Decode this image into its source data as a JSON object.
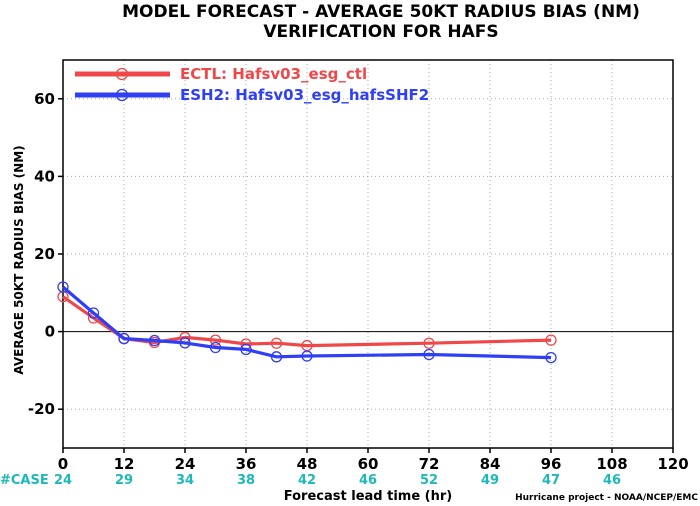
{
  "chart_data": {
    "type": "line",
    "title": "MODEL FORECAST - AVERAGE 50KT RADIUS BIAS (NM)",
    "subtitle": "VERIFICATION FOR HAFS",
    "xlabel": "Forecast lead time (hr)",
    "ylabel": "AVERAGE 50KT RADIUS BIAS (NM)",
    "xlim": [
      0,
      120
    ],
    "ylim": [
      -30,
      70
    ],
    "xticks": [
      0,
      12,
      24,
      36,
      48,
      60,
      72,
      84,
      96,
      108,
      120
    ],
    "yticks": [
      -20,
      0,
      20,
      40,
      60
    ],
    "grid": true,
    "legend_position": "top-left",
    "series": [
      {
        "name": "ECTL: Hafsv03_esg_ctl",
        "color": "#f04848",
        "x": [
          0,
          6,
          12,
          18,
          24,
          30,
          36,
          42,
          48,
          72,
          96
        ],
        "y": [
          9,
          3.5,
          -1.8,
          -2.8,
          -1.5,
          -2.2,
          -3.2,
          -3,
          -3.6,
          -3,
          -2.2
        ]
      },
      {
        "name": "ESH2: Hafsv03_esg_hafsSHF2",
        "color": "#2f3ff5",
        "x": [
          0,
          6,
          12,
          18,
          24,
          30,
          36,
          42,
          48,
          72,
          96
        ],
        "y": [
          11.5,
          4.8,
          -1.8,
          -2.3,
          -2.9,
          -4.1,
          -4.6,
          -6.5,
          -6.3,
          -5.9,
          -6.7
        ]
      }
    ],
    "case_label": "#CASE",
    "case_counts": [
      {
        "x": 0,
        "value": "24"
      },
      {
        "x": 12,
        "value": "29"
      },
      {
        "x": 24,
        "value": "34"
      },
      {
        "x": 36,
        "value": "38"
      },
      {
        "x": 48,
        "value": "42"
      },
      {
        "x": 60,
        "value": "46"
      },
      {
        "x": 72,
        "value": "52"
      },
      {
        "x": 84,
        "value": "49"
      },
      {
        "x": 96,
        "value": "47"
      },
      {
        "x": 108,
        "value": "46"
      }
    ],
    "credit": "Hurricane project - NOAA/NCEP/EMC"
  }
}
